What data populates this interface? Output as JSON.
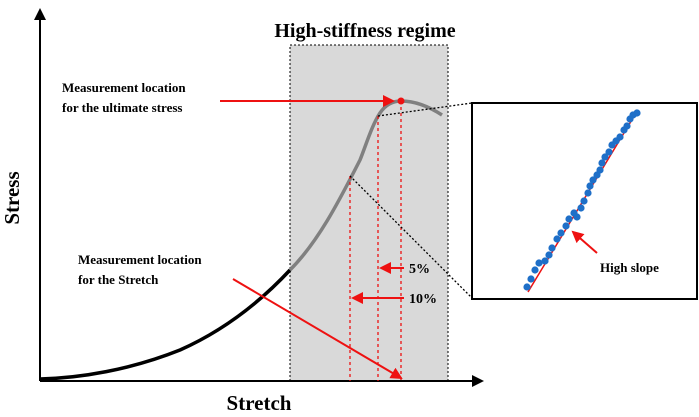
{
  "title": "High-stiffness regime",
  "axes": {
    "x_label": "Stretch",
    "y_label": "Stress"
  },
  "annotations": {
    "ultimate_stress": {
      "line1": "Measurement location",
      "line2": "for the ultimate stress"
    },
    "stretch": {
      "line1": "Measurement location",
      "line2": "for the Stretch"
    },
    "pct_5": "5%",
    "pct_10": "10%",
    "high_slope": "High slope"
  },
  "colors": {
    "curve_low": "#000000",
    "curve_high": "#808080",
    "accent": "#ee1111",
    "region": "#d9d9d9",
    "dots": "#1e6fc8"
  }
}
